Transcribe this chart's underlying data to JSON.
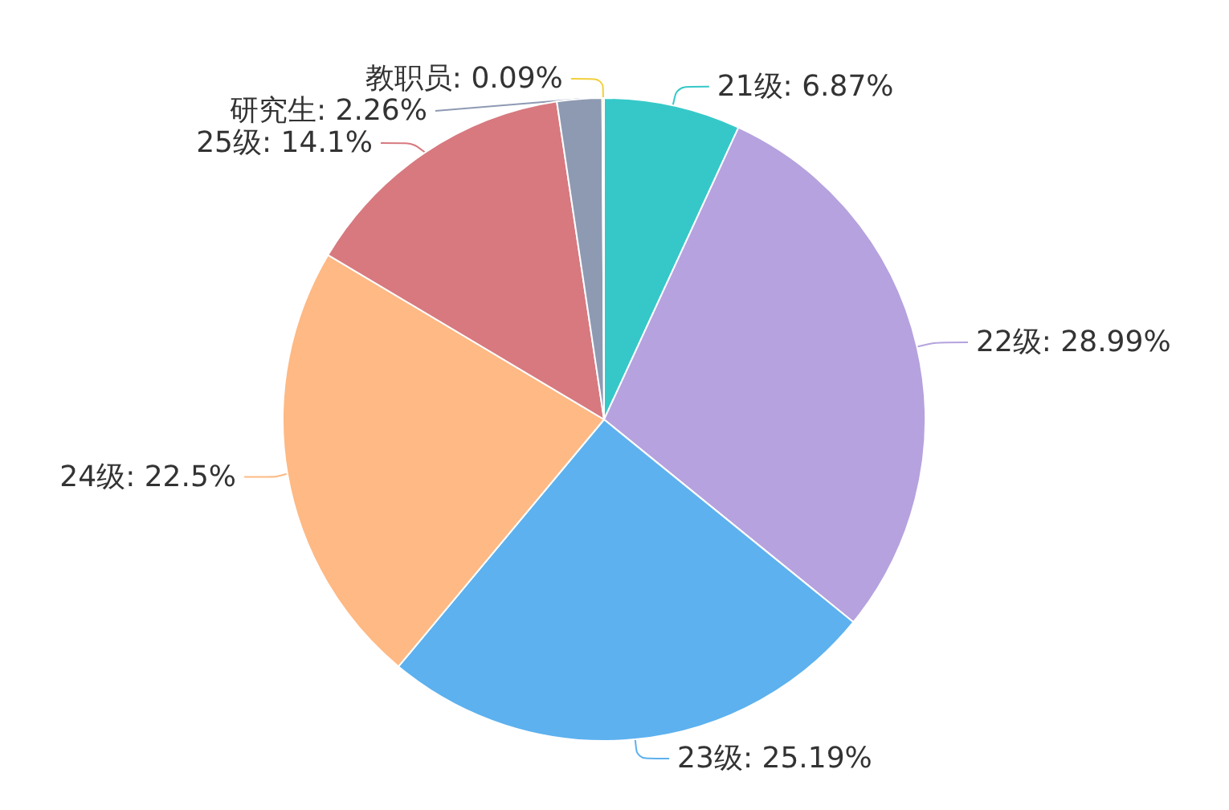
{
  "chart_data": {
    "type": "pie",
    "categories": [
      "21级",
      "22级",
      "23级",
      "24级",
      "25级",
      "研究生",
      "教职员"
    ],
    "values": [
      6.87,
      28.99,
      25.19,
      22.5,
      14.1,
      2.26,
      0.09
    ],
    "value_labels": [
      "6.87%",
      "28.99%",
      "25.19%",
      "22.5%",
      "14.1%",
      "2.26%",
      "0.09%"
    ],
    "colors": [
      "#36c8c8",
      "#b5a2de",
      "#5db1ee",
      "#feb984",
      "#d7797f",
      "#8e9ab2",
      "#f2cf3c"
    ],
    "legend": false
  }
}
